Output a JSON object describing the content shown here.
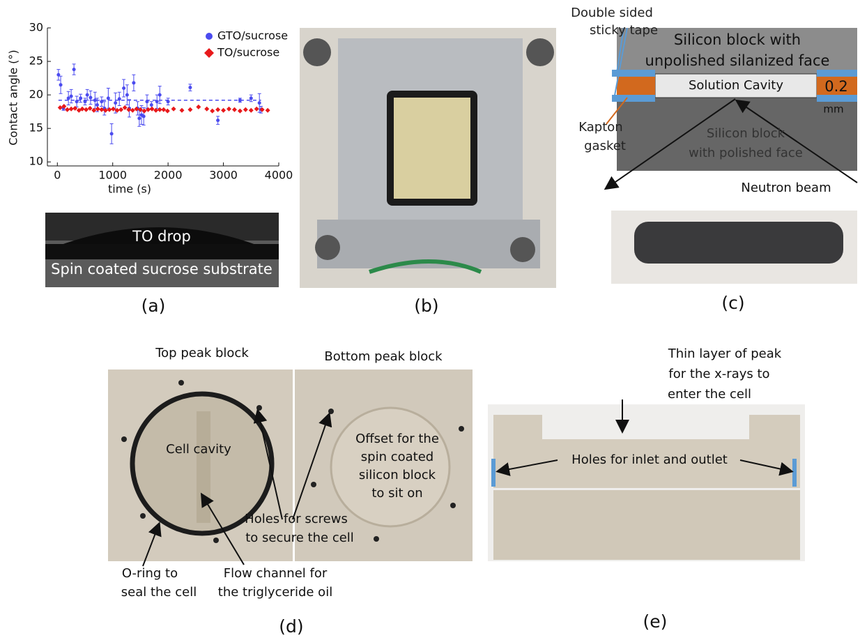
{
  "chart_data": {
    "type": "scatter",
    "xlabel": "time (s)",
    "ylabel": "Contact angle (°)",
    "xlim": [
      -180,
      4000
    ],
    "ylim": [
      9.4,
      30
    ],
    "xticks": [
      0,
      1000,
      2000,
      3000,
      4000
    ],
    "yticks": [
      10,
      15,
      20,
      25,
      30
    ],
    "legend": "upper right",
    "reference_line": {
      "value": 19.2,
      "color": "#4b4bef"
    },
    "series": [
      {
        "name": "GTO/sucrose",
        "color": "#4b4bef",
        "marker": "circle",
        "x": [
          20,
          60,
          110,
          200,
          250,
          300,
          350,
          420,
          500,
          540,
          600,
          680,
          720,
          800,
          850,
          920,
          980,
          1050,
          1120,
          1200,
          1260,
          1300,
          1380,
          1450,
          1480,
          1520,
          1560,
          1620,
          1700,
          1800,
          1850,
          2000,
          2400,
          2900,
          3300,
          3500,
          3650,
          3680
        ],
        "values": [
          23,
          21.5,
          18,
          19.5,
          19.8,
          23.8,
          19,
          19.5,
          19,
          20,
          19.6,
          19.2,
          18.5,
          19,
          18,
          19.5,
          14.2,
          18.8,
          19.4,
          21,
          20,
          18,
          21.8,
          18,
          16.5,
          17,
          16.8,
          19,
          18.5,
          19,
          20,
          19,
          21.1,
          16.2,
          19.2,
          19.5,
          18.8,
          17.8
        ],
        "errors": [
          0.8,
          1.3,
          0.3,
          1,
          1,
          0.8,
          0.8,
          0.6,
          0.5,
          0.8,
          1,
          1.2,
          1,
          0.7,
          1,
          1.5,
          1.5,
          1.5,
          1,
          1.3,
          1.5,
          1.3,
          1.2,
          1,
          1.2,
          1.4,
          1.3,
          1,
          0.5,
          1,
          1.3,
          0.5,
          0.5,
          0.6,
          0.3,
          0.5,
          1.4,
          0.5
        ]
      },
      {
        "name": "TO/sucrose",
        "color": "#e8191b",
        "marker": "diamond",
        "x": [
          50,
          120,
          180,
          250,
          320,
          390,
          450,
          520,
          590,
          660,
          730,
          800,
          870,
          940,
          1010,
          1080,
          1150,
          1220,
          1290,
          1360,
          1430,
          1500,
          1570,
          1640,
          1710,
          1780,
          1850,
          1920,
          1990,
          2100,
          2250,
          2400,
          2550,
          2700,
          2800,
          2900,
          3000,
          3100,
          3200,
          3300,
          3400,
          3500,
          3600,
          3700,
          3800
        ],
        "values": [
          18.1,
          18.3,
          17.8,
          17.9,
          18,
          17.7,
          17.9,
          17.8,
          18,
          17.7,
          17.9,
          17.8,
          17.7,
          17.8,
          17.9,
          17.7,
          17.8,
          18.1,
          17.8,
          17.7,
          17.9,
          17.8,
          17.6,
          17.8,
          17.9,
          17.7,
          17.8,
          17.8,
          17.6,
          17.9,
          17.7,
          17.8,
          18.2,
          17.9,
          17.6,
          17.8,
          17.7,
          17.9,
          17.8,
          17.6,
          17.8,
          17.7,
          17.9,
          17.8,
          17.7
        ]
      }
    ]
  },
  "panel_a": {
    "label": "(a)",
    "drop": "TO drop",
    "substrate": "Spin coated sucrose substrate"
  },
  "panel_b": {
    "label": "(b)"
  },
  "panel_c": {
    "label": "(c)",
    "tape": [
      "Double sided",
      "sticky tape"
    ],
    "top_block": [
      "Silicon block with",
      "unpolished silanized face"
    ],
    "cavity": "Solution Cavity",
    "gap": [
      "0.2",
      "mm"
    ],
    "gasket": [
      "Kapton",
      "gasket"
    ],
    "bottom_block": [
      "Silicon block",
      "with polished face"
    ],
    "beam": "Neutron beam"
  },
  "panel_d": {
    "label": "(d)",
    "top": "Top peak block",
    "bottom": "Bottom peak block",
    "cavity": "Cell cavity",
    "offset": [
      "Offset for the",
      "spin coated",
      "silicon block",
      "to sit on"
    ],
    "screws": [
      "Holes for screws",
      "to secure the cell"
    ],
    "oring": [
      "O-ring to",
      "seal the cell"
    ],
    "channel": [
      "Flow channel for",
      "the triglyceride oil"
    ]
  },
  "panel_e": {
    "label": "(e)",
    "layer": [
      "Thin layer of peak",
      "for the x-rays to",
      "enter the cell"
    ],
    "holes": "Holes for inlet and outlet"
  }
}
